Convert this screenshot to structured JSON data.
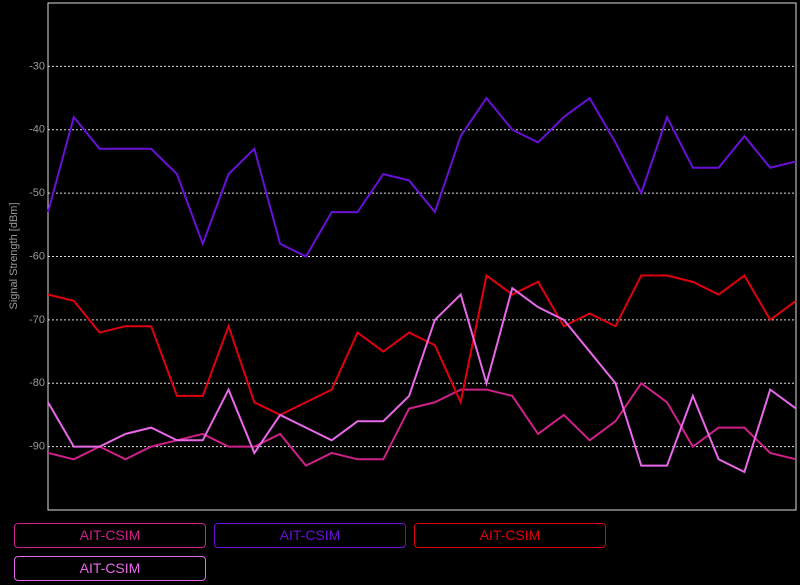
{
  "chart_data": {
    "type": "line",
    "y_label": "Signal Strength [dBm]",
    "categories": [
      null,
      null,
      null,
      null,
      null,
      null,
      null,
      null,
      null,
      null,
      null,
      null,
      null,
      null,
      null,
      null,
      null,
      null,
      null,
      null,
      null,
      null,
      null,
      null,
      null,
      null,
      null,
      null,
      null,
      null
    ],
    "ylim": [
      -100,
      -20
    ],
    "yticks": [
      -90,
      -80,
      -70,
      -60,
      -50,
      -40,
      -30
    ],
    "grid": true,
    "series": [
      {
        "name": "AIT-CSIM",
        "color": "#d0208a",
        "values": [
          -91,
          -92,
          -90,
          -92,
          -90,
          -89,
          -88,
          -90,
          -90,
          -88,
          -93,
          -91,
          -92,
          -92,
          -84,
          -83,
          -81,
          -81,
          -82,
          -88,
          -85,
          -89,
          -86,
          -80,
          -83,
          -90,
          -87,
          -87,
          -91,
          -92
        ]
      },
      {
        "name": "AIT-CSIM",
        "color": "#6a10d8",
        "values": [
          -53,
          -38,
          -43,
          -43,
          -43,
          -47,
          -58,
          -47,
          -43,
          -58,
          -60,
          -53,
          -53,
          -47,
          -48,
          -53,
          -41,
          -35,
          -40,
          -42,
          -38,
          -35,
          -42,
          -50,
          -38,
          -46,
          -46,
          -41,
          -46,
          -45
        ]
      },
      {
        "name": "AIT-CSIM",
        "color": "#e0000e",
        "values": [
          -66,
          -67,
          -72,
          -71,
          -71,
          -82,
          -82,
          -71,
          -83,
          -85,
          -83,
          -81,
          -72,
          -75,
          -72,
          -74,
          -83,
          -63,
          -66,
          -64,
          -71,
          -69,
          -71,
          -63,
          -63,
          -64,
          -66,
          -63,
          -70,
          -67
        ]
      },
      {
        "name": "AIT-CSIM",
        "color": "#e868e8",
        "values": [
          -83,
          -90,
          -90,
          -88,
          -87,
          -89,
          -89,
          -81,
          -91,
          -85,
          -87,
          -89,
          -86,
          -86,
          -82,
          -70,
          -66,
          -80,
          -65,
          -68,
          -70,
          -75,
          -80,
          -93,
          -93,
          -82,
          -92,
          -94,
          -81,
          -84
        ]
      }
    ]
  }
}
